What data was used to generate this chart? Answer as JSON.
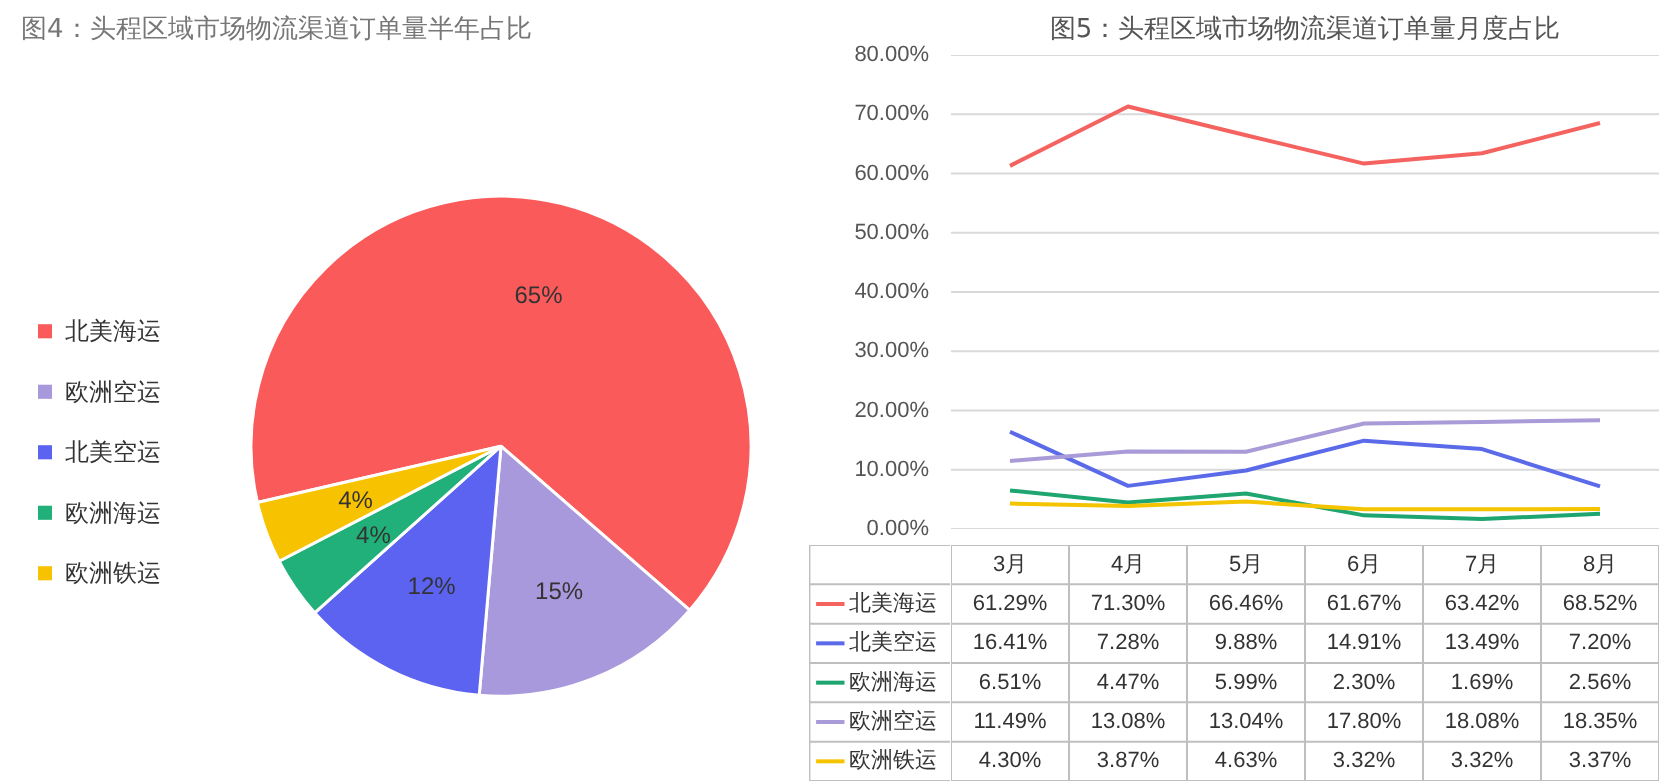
{
  "chart_data": [
    {
      "type": "pie",
      "title": "图4：头程区域市场物流渠道订单量半年占比",
      "categories": [
        "北美海运",
        "欧洲空运",
        "北美空运",
        "欧洲海运",
        "欧洲铁运"
      ],
      "values": [
        65,
        15,
        12,
        4,
        4
      ],
      "colors": [
        "#fa5a5a",
        "#a898dc",
        "#5b63f0",
        "#22b07a",
        "#f7c200"
      ],
      "value_labels": [
        "65%",
        "15%",
        "12%",
        "4%",
        "4%"
      ],
      "legend": "left"
    },
    {
      "type": "line",
      "title": "图5：头程区域市场物流渠道订单量月度占比",
      "categories": [
        "3月",
        "4月",
        "5月",
        "6月",
        "7月",
        "8月"
      ],
      "series": [
        {
          "name": "北美海运",
          "color": "#f4635f",
          "values": [
            61.29,
            71.3,
            66.46,
            61.67,
            63.42,
            68.52
          ],
          "value_labels": [
            "61.29%",
            "71.30%",
            "66.46%",
            "61.67%",
            "63.42%",
            "68.52%"
          ]
        },
        {
          "name": "北美空运",
          "color": "#5b6ae8",
          "values": [
            16.41,
            7.28,
            9.88,
            14.91,
            13.49,
            7.2
          ],
          "value_labels": [
            "16.41%",
            "7.28%",
            "9.88%",
            "14.91%",
            "13.49%",
            "7.20%"
          ]
        },
        {
          "name": "欧洲海运",
          "color": "#1fa56f",
          "values": [
            6.51,
            4.47,
            5.99,
            2.3,
            1.69,
            2.56
          ],
          "value_labels": [
            "6.51%",
            "4.47%",
            "5.99%",
            "2.30%",
            "1.69%",
            "2.56%"
          ]
        },
        {
          "name": "欧洲空运",
          "color": "#a99ad8",
          "values": [
            11.49,
            13.08,
            13.04,
            17.8,
            18.08,
            18.35
          ],
          "value_labels": [
            "11.49%",
            "13.08%",
            "13.04%",
            "17.80%",
            "18.08%",
            "18.35%"
          ]
        },
        {
          "name": "欧洲铁运",
          "color": "#f5c400",
          "values": [
            4.3,
            3.87,
            4.63,
            3.32,
            3.32,
            3.37
          ],
          "value_labels": [
            "4.30%",
            "3.87%",
            "4.63%",
            "3.32%",
            "3.32%",
            "3.37%"
          ]
        }
      ],
      "ylim": [
        0,
        80
      ],
      "yticks": [
        {
          "value": 0,
          "label": "0.00%"
        },
        {
          "value": 10,
          "label": "10.00%"
        },
        {
          "value": 20,
          "label": "20.00%"
        },
        {
          "value": 30,
          "label": "30.00%"
        },
        {
          "value": 40,
          "label": "40.00%"
        },
        {
          "value": 50,
          "label": "50.00%"
        },
        {
          "value": 60,
          "label": "60.00%"
        },
        {
          "value": 70,
          "label": "70.00%"
        },
        {
          "value": 80,
          "label": "80.00%"
        }
      ],
      "grid": "y",
      "legend": "bottom",
      "line_style": "solid",
      "marker": "none"
    }
  ]
}
